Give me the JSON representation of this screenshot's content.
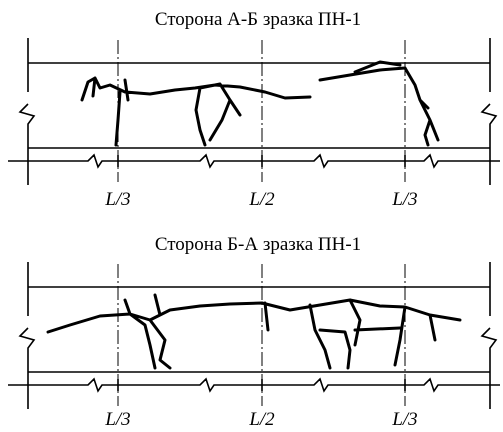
{
  "panels": [
    {
      "title": "Сторона А-Б зразка ПН-1",
      "labels": [
        "L/3",
        "L/2",
        "L/3"
      ]
    },
    {
      "title": "Сторона Б-А зразка ПН-1",
      "labels": [
        "L/3",
        "L/2",
        "L/3"
      ]
    }
  ]
}
